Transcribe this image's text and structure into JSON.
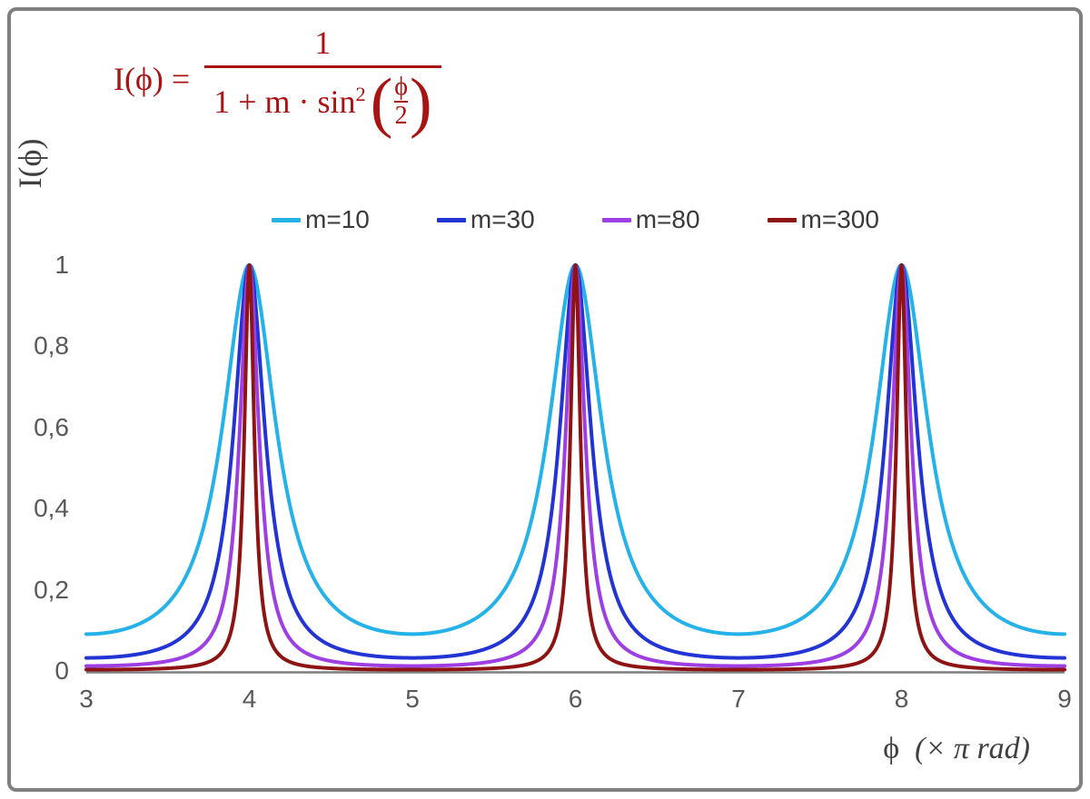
{
  "frame": {
    "border_color": "#808080",
    "background": "#ffffff"
  },
  "formula": {
    "color": "#a81414",
    "lhs": "I(ϕ) =",
    "numerator": "1",
    "den_prefix": "1 + m · sin",
    "den_sup": "2",
    "open_paren": "(",
    "inner_num": "ϕ",
    "inner_den": "2",
    "close_paren": ")"
  },
  "legend": {
    "label_color": "#3a3a3a"
  },
  "axes": {
    "y_label": "I(ϕ)",
    "x_label_phi": "ϕ",
    "x_label_rest": "(× π rad)",
    "x_ticks_labels": [
      "3",
      "4",
      "5",
      "6",
      "7",
      "8",
      "9"
    ],
    "y_ticks_labels": [
      "0",
      "0,2",
      "0,4",
      "0,6",
      "0,8",
      "1"
    ],
    "axis_color": "#7f7f7f",
    "tick_color": "#595959",
    "label_color": "#3f3f3f"
  },
  "chart_data": {
    "type": "line",
    "title": "",
    "formula": "I(phi) = 1 / (1 + m * sin^2(phi/2))",
    "x_unit": "pi rad",
    "xlabel": "phi (x pi rad)",
    "ylabel": "I(phi)",
    "x_range": [
      3,
      9
    ],
    "y_range": [
      0,
      1
    ],
    "x_ticks": [
      3,
      4,
      5,
      6,
      7,
      8,
      9
    ],
    "y_ticks": [
      0,
      0.2,
      0.4,
      0.6,
      0.8,
      1
    ],
    "peaks_at_x": [
      4,
      6,
      8
    ],
    "peak_value": 1,
    "grid": false,
    "legend_position": "top-center",
    "sample_step": 0.005,
    "series": [
      {
        "name": "m=10",
        "m": 10,
        "color": "#25b2e8",
        "value_at_x3": 0.0909
      },
      {
        "name": "m=30",
        "m": 30,
        "color": "#2334d4",
        "value_at_x3": 0.0323
      },
      {
        "name": "m=80",
        "m": 80,
        "color": "#9d3fe3",
        "value_at_x3": 0.0123
      },
      {
        "name": "m=300",
        "m": 300,
        "color": "#8e1414",
        "value_at_x3": 0.0033
      }
    ]
  }
}
